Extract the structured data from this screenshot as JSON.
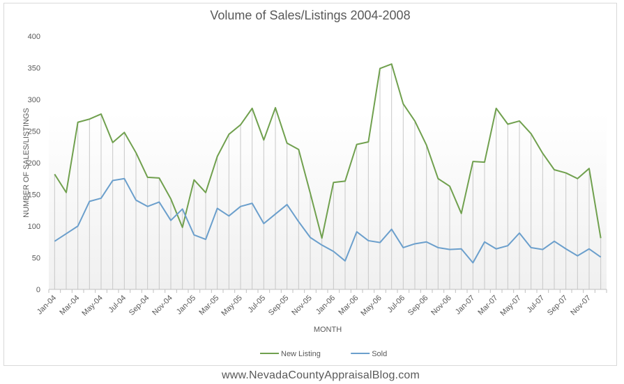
{
  "chart_data": {
    "type": "line",
    "title": "Volume of Sales/Listings 2004-2008",
    "xlabel": "MONTH",
    "ylabel": "NUMBER OF SALES/LISTINGS",
    "ylim": [
      0,
      400
    ],
    "yticks": [
      0,
      50,
      100,
      150,
      200,
      250,
      300,
      350,
      400
    ],
    "legend_position": "bottom",
    "grid": "vertical drop lines at each month",
    "categories": [
      "Jan-04",
      "Feb-04",
      "Mar-04",
      "Apr-04",
      "May-04",
      "Jun-04",
      "Jul-04",
      "Aug-04",
      "Sep-04",
      "Oct-04",
      "Nov-04",
      "Dec-04",
      "Jan-05",
      "Feb-05",
      "Mar-05",
      "Apr-05",
      "May-05",
      "Jun-05",
      "Jul-05",
      "Aug-05",
      "Sep-05",
      "Oct-05",
      "Nov-05",
      "Dec-05",
      "Jan-06",
      "Feb-06",
      "Mar-06",
      "Apr-06",
      "May-06",
      "Jun-06",
      "Jul-06",
      "Aug-06",
      "Sep-06",
      "Oct-06",
      "Nov-06",
      "Dec-06",
      "Jan-07",
      "Feb-07",
      "Mar-07",
      "Apr-07",
      "May-07",
      "Jun-07",
      "Jul-07",
      "Aug-07",
      "Sep-07",
      "Oct-07",
      "Nov-07",
      "Dec-07"
    ],
    "tick_labels": [
      "Jan-04",
      "Mar-04",
      "May-04",
      "Jul-04",
      "Sep-04",
      "Nov-04",
      "Jan-05",
      "Mar-05",
      "May-05",
      "Jul-05",
      "Sep-05",
      "Nov-05",
      "Jan-06",
      "Mar-06",
      "May-06",
      "Jul-06",
      "Sep-06",
      "Nov-06",
      "Jan-07",
      "Mar-07",
      "May-07",
      "Jul-07",
      "Sep-07",
      "Nov-07"
    ],
    "series": [
      {
        "name": "New Listing",
        "color": "#70a04e",
        "values": [
          182,
          153,
          264,
          269,
          277,
          232,
          248,
          216,
          177,
          176,
          143,
          98,
          173,
          153,
          210,
          245,
          260,
          286,
          236,
          287,
          231,
          221,
          152,
          81,
          169,
          171,
          229,
          233,
          349,
          356,
          293,
          266,
          228,
          175,
          163,
          120,
          202,
          201,
          286,
          261,
          266,
          246,
          215,
          189,
          184,
          175,
          191,
          81
        ]
      },
      {
        "name": "Sold",
        "color": "#6b9fcc",
        "values": [
          76,
          88,
          100,
          139,
          144,
          172,
          175,
          141,
          131,
          138,
          109,
          127,
          86,
          79,
          128,
          116,
          131,
          136,
          104,
          119,
          134,
          107,
          82,
          70,
          60,
          45,
          91,
          77,
          74,
          95,
          66,
          72,
          75,
          66,
          63,
          64,
          42,
          75,
          64,
          69,
          89,
          66,
          63,
          76,
          64,
          53,
          64,
          51
        ]
      }
    ]
  },
  "footer": "www.NevadaCountyAppraisalBlog.com"
}
